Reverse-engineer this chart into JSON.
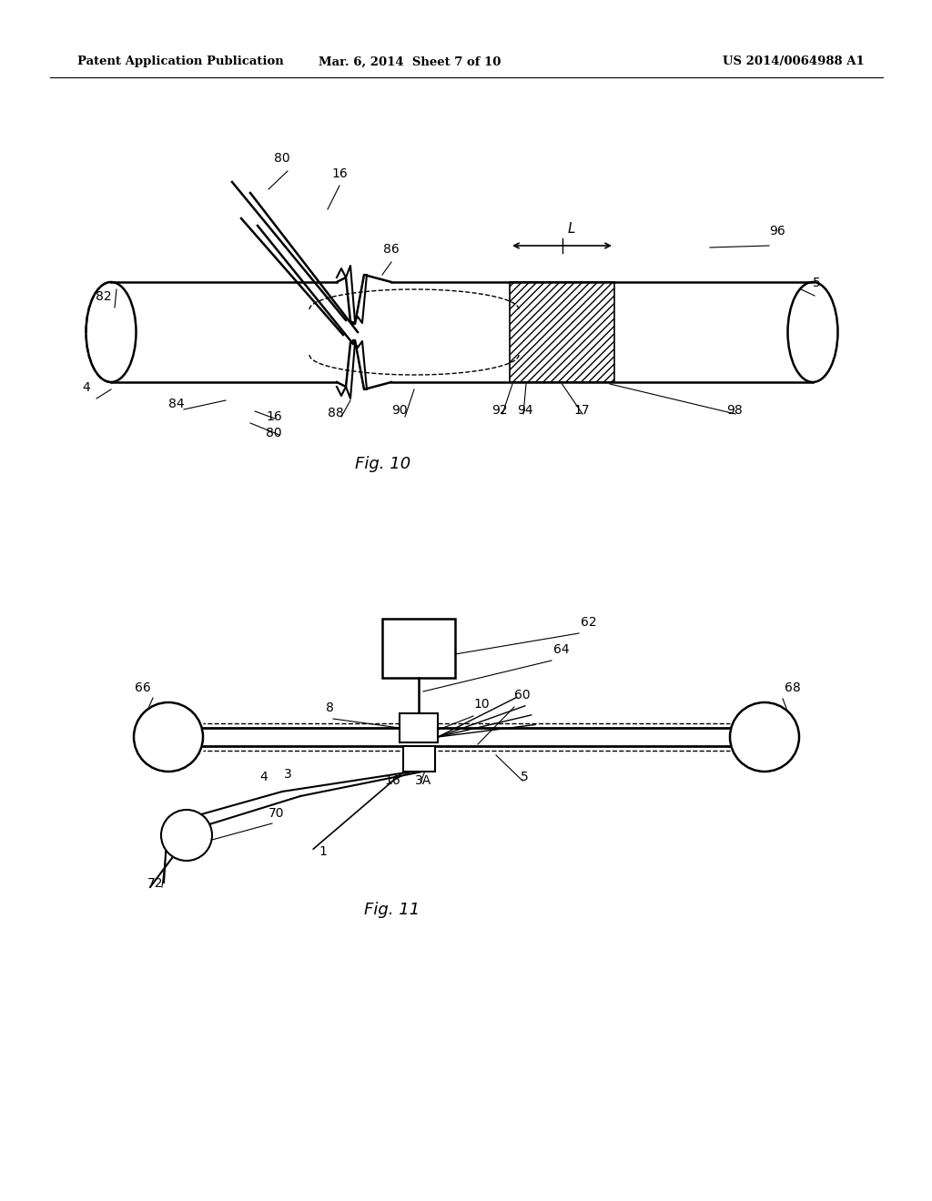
{
  "bg_color": "#ffffff",
  "header_left": "Patent Application Publication",
  "header_mid": "Mar. 6, 2014  Sheet 7 of 10",
  "header_right": "US 2014/0064988 A1",
  "fig10_caption": "Fig. 10",
  "fig11_caption": "Fig. 11",
  "line_color": "#000000"
}
